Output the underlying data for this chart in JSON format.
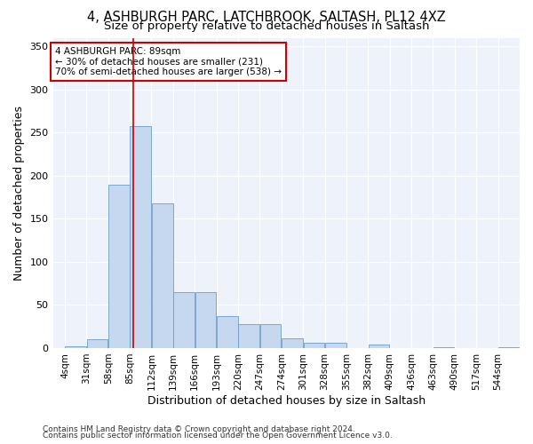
{
  "title_line1": "4, ASHBURGH PARC, LATCHBROOK, SALTASH, PL12 4XZ",
  "title_line2": "Size of property relative to detached houses in Saltash",
  "xlabel": "Distribution of detached houses by size in Saltash",
  "ylabel": "Number of detached properties",
  "bin_labels": [
    "4sqm",
    "31sqm",
    "58sqm",
    "85sqm",
    "112sqm",
    "139sqm",
    "166sqm",
    "193sqm",
    "220sqm",
    "247sqm",
    "274sqm",
    "301sqm",
    "328sqm",
    "355sqm",
    "382sqm",
    "409sqm",
    "436sqm",
    "463sqm",
    "490sqm",
    "517sqm",
    "544sqm"
  ],
  "bin_edges": [
    4,
    31,
    58,
    85,
    112,
    139,
    166,
    193,
    220,
    247,
    274,
    301,
    328,
    355,
    382,
    409,
    436,
    463,
    490,
    517,
    544
  ],
  "bar_heights": [
    2,
    10,
    190,
    258,
    168,
    65,
    65,
    37,
    28,
    28,
    11,
    6,
    6,
    0,
    4,
    0,
    0,
    1,
    0,
    0,
    1
  ],
  "bar_color": "#c5d8f0",
  "bar_edgecolor": "#6b9ec8",
  "property_sqm": 89,
  "vline_color": "#cc0000",
  "annotation_line1": "4 ASHBURGH PARC: 89sqm",
  "annotation_line2": "← 30% of detached houses are smaller (231)",
  "annotation_line3": "70% of semi-detached houses are larger (538) →",
  "annotation_box_edgecolor": "#cc0000",
  "ylim": [
    0,
    360
  ],
  "yticks": [
    0,
    50,
    100,
    150,
    200,
    250,
    300,
    350
  ],
  "footer_line1": "Contains HM Land Registry data © Crown copyright and database right 2024.",
  "footer_line2": "Contains public sector information licensed under the Open Government Licence v3.0.",
  "plot_bg_color": "#edf2fb",
  "grid_color": "#ffffff",
  "title_fontsize": 10.5,
  "subtitle_fontsize": 9.5,
  "tick_fontsize": 7.5,
  "label_fontsize": 9,
  "footer_fontsize": 6.5
}
